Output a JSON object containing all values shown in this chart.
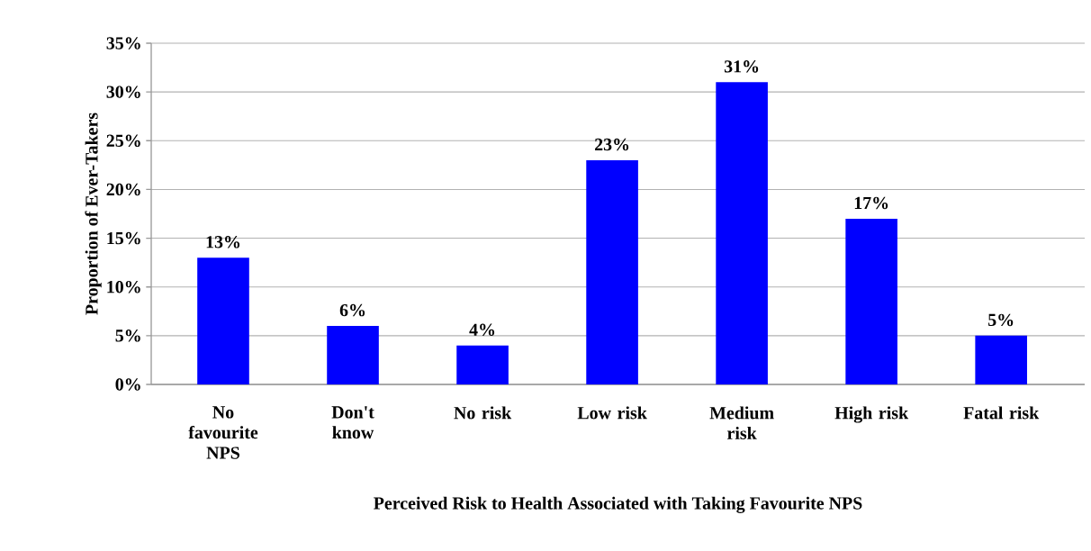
{
  "chart_data": {
    "type": "bar",
    "xlabel": "Perceived Risk to Health Associated with Taking Favourite NPS",
    "ylabel": "Proportion of Ever-Takers",
    "categories": [
      "No favourite NPS",
      "Don't know",
      "No risk",
      "Low risk",
      "Medium risk",
      "High risk",
      "Fatal risk"
    ],
    "values": [
      13,
      6,
      4,
      23,
      31,
      17,
      5
    ],
    "value_labels": [
      "13%",
      "6%",
      "4%",
      "23%",
      "31%",
      "17%",
      "5%"
    ],
    "color": "#0000ff",
    "ylim": [
      0,
      35
    ],
    "yticks": [
      {
        "value": 0,
        "label": "0%"
      },
      {
        "value": 5,
        "label": "5%"
      },
      {
        "value": 10,
        "label": "10%"
      },
      {
        "value": 15,
        "label": "15%"
      },
      {
        "value": 20,
        "label": "20%"
      },
      {
        "value": 25,
        "label": "25%"
      },
      {
        "value": 30,
        "label": "30%"
      },
      {
        "value": 35,
        "label": "35%"
      }
    ],
    "grid": "y"
  }
}
